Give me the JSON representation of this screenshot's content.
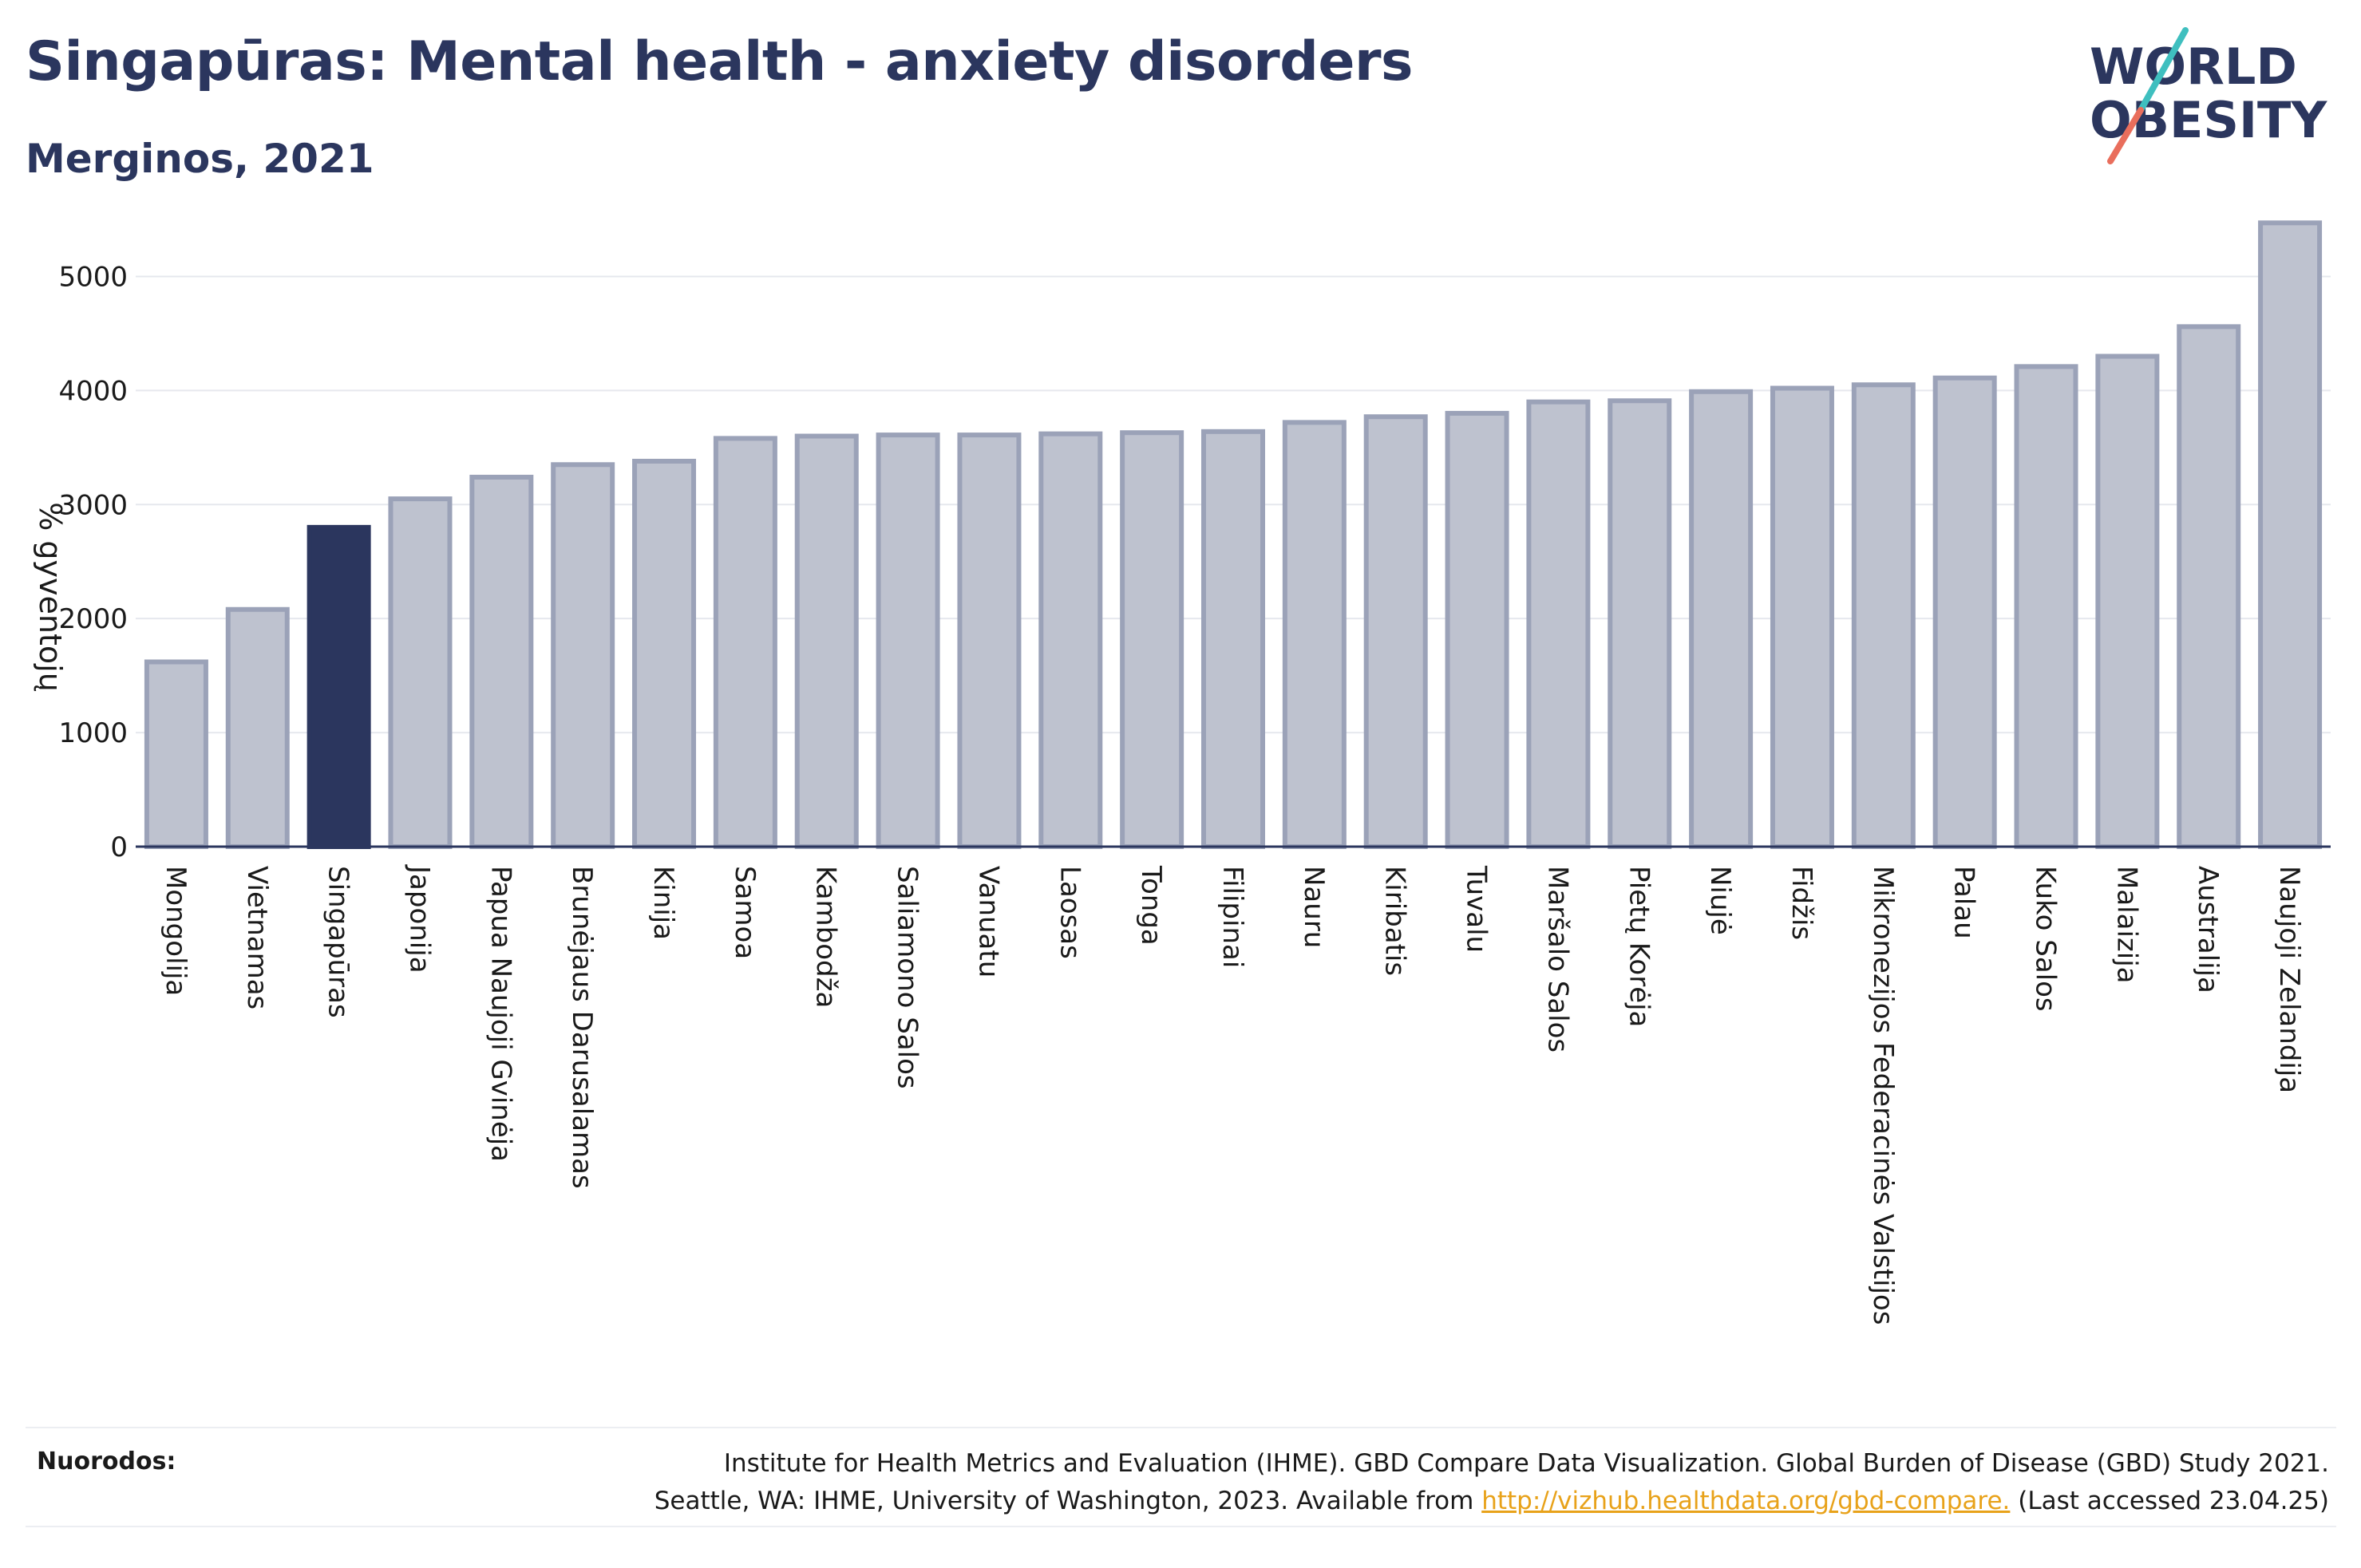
{
  "header": {
    "title": "Singapūras: Mental health - anxiety disorders",
    "subtitle": "Merginos, 2021"
  },
  "logo": {
    "line1": "WORLD",
    "line2": "OBESITY"
  },
  "footer": {
    "refs_label": "Nuorodos:",
    "refs_line1": "Institute for Health Metrics and Evaluation (IHME). GBD Compare Data Visualization. Global Burden of Disease (GBD) Study 2021.",
    "refs_line2_pre": "Seattle, WA: IHME, University of Washington, 2023. Available from ",
    "refs_link": "http://vizhub.healthdata.org/gbd-compare.",
    "refs_line2_post": " (Last accessed 23.04.25)"
  },
  "colors": {
    "highlight": "#2b365e",
    "bar_fill": "#bec2cf",
    "bar_stroke": "#9ba2b8",
    "title": "#2b365e",
    "grid": "#e6e8ee",
    "logo_teal": "#3fbfbf",
    "logo_coral": "#e96e5c"
  },
  "chart_data": {
    "type": "bar",
    "ylabel": "% gyventojų",
    "ylim": [
      0,
      5500
    ],
    "yticks": [
      0,
      1000,
      2000,
      3000,
      4000,
      5000
    ],
    "grid": true,
    "highlight": "Singapūras",
    "categories": [
      "Mongolija",
      "Vietnamas",
      "Singapūras",
      "Japonija",
      "Papua Naujoji Gvinėja",
      "Brunėjaus Darusalamas",
      "Kinija",
      "Samoa",
      "Kambodža",
      "Saliamono Salos",
      "Vanuatu",
      "Laosas",
      "Tonga",
      "Filipinai",
      "Nauru",
      "Kiribatis",
      "Tuvalu",
      "Maršalo Salos",
      "Pietų Korėja",
      "Niujė",
      "Fidžis",
      "Mikronezijos Federacinės Valstijos",
      "Palau",
      "Kuko Salos",
      "Malaizija",
      "Australija",
      "Naujoji Zelandija"
    ],
    "values": [
      1620,
      2080,
      2800,
      3050,
      3240,
      3350,
      3380,
      3580,
      3600,
      3610,
      3610,
      3620,
      3630,
      3640,
      3720,
      3770,
      3800,
      3900,
      3910,
      3990,
      4020,
      4050,
      4110,
      4210,
      4300,
      4560,
      5470
    ]
  }
}
